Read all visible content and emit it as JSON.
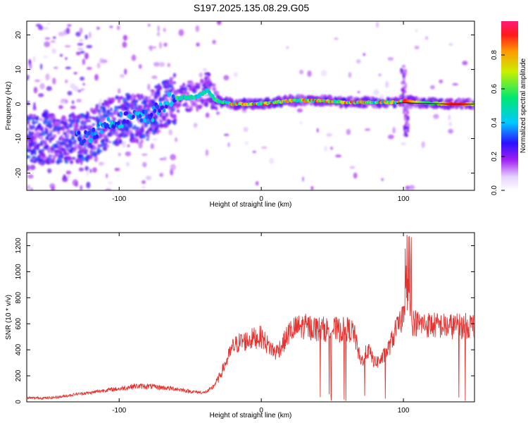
{
  "title": "S197.2025.135.08.29.G05",
  "colors": {
    "snr_line": "#e8322f",
    "track_core": "#ff2a2a",
    "background": "#ffffff"
  },
  "chart_data": [
    {
      "type": "heatmap",
      "xlabel": "Height of straight line (km)",
      "ylabel": "Frequency (Hz)",
      "xlim": [
        -165,
        150
      ],
      "ylim": [
        -25,
        24
      ],
      "x_ticks": [
        -100,
        0,
        100
      ],
      "y_ticks": [
        -20,
        -10,
        0,
        10,
        20
      ],
      "grid": false,
      "colorbar": {
        "label": "Normalized spectral amplitude",
        "range": [
          0,
          1
        ],
        "ticks": [
          "0.0",
          "0.2",
          "0.4",
          "0.6",
          "0.8"
        ],
        "colormap": "rainbow (violet → red)"
      },
      "ridge": {
        "description": "dominant frequency track",
        "x": [
          -125,
          -110,
          -95,
          -80,
          -65,
          -55,
          -45,
          -38,
          -32,
          -20,
          0,
          20,
          40,
          60,
          80,
          95,
          100,
          110,
          130,
          148
        ],
        "y": [
          -10,
          -6,
          -4,
          -4,
          1,
          2,
          2,
          4,
          1,
          0,
          0,
          1,
          1,
          0.5,
          0.5,
          0.5,
          1,
          0.5,
          0,
          0
        ]
      }
    },
    {
      "type": "line",
      "xlabel": "Height of straight line (km)",
      "ylabel": "SNR (10 * v/v)",
      "xlim": [
        -165,
        150
      ],
      "ylim": [
        0,
        1300
      ],
      "x_ticks": [
        -100,
        0,
        100
      ],
      "y_ticks": [
        0,
        200,
        400,
        600,
        800,
        1000,
        1200
      ],
      "grid": false,
      "series": [
        {
          "x": [
            -165,
            -150,
            -140,
            -130,
            -120,
            -110,
            -100,
            -90,
            -80,
            -70,
            -60,
            -50,
            -40,
            -35,
            -30,
            -25,
            -20,
            -15,
            -10,
            -5,
            0,
            5,
            10,
            15,
            20,
            25,
            30,
            35,
            40,
            45,
            50,
            55,
            60,
            65,
            70,
            75,
            80,
            85,
            90,
            95,
            98,
            100,
            102,
            104,
            106,
            110,
            120,
            130,
            140,
            150
          ],
          "y": [
            30,
            30,
            40,
            60,
            70,
            90,
            100,
            120,
            120,
            110,
            100,
            80,
            70,
            100,
            180,
            300,
            420,
            460,
            470,
            490,
            500,
            430,
            380,
            440,
            540,
            570,
            580,
            570,
            560,
            560,
            560,
            550,
            560,
            540,
            300,
            400,
            300,
            330,
            420,
            560,
            600,
            700,
            900,
            750,
            620,
            600,
            590,
            580,
            580,
            590
          ]
        }
      ]
    }
  ]
}
